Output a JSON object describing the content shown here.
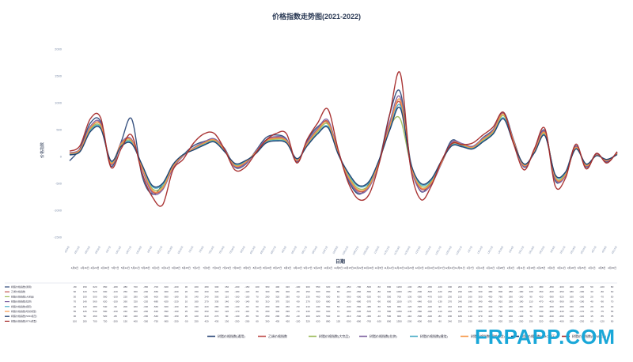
{
  "chart_data": {
    "type": "line",
    "title": "价格指数走势图(2021-2022)",
    "ylabel": "价格指数",
    "xlabel": "日期",
    "ylim": [
      -1500,
      2000
    ],
    "yticks": [
      -1500,
      -1000,
      -500,
      0,
      500,
      1000,
      1500,
      2000
    ],
    "x": [
      "4月9日",
      "4月16日",
      "4月23日",
      "4月30日",
      "5月7日",
      "5月14日",
      "5月21日",
      "5月28日",
      "6月4日",
      "6月11日",
      "6月18日",
      "6月25日",
      "7月2日",
      "7月9日",
      "7月16日",
      "7月23日",
      "7月30日",
      "8月6日",
      "8月13日",
      "8月20日",
      "8月27日",
      "9月3日",
      "9月10日",
      "9月17日",
      "9月24日",
      "10月1日",
      "10月8日",
      "10月15日",
      "10月22日",
      "10月29日",
      "11月5日",
      "11月12日",
      "11月19日",
      "11月26日",
      "12月3日",
      "12月10日",
      "12月17日",
      "12月24日",
      "12月31日",
      "1月7日",
      "1月14日",
      "1月21日",
      "1月28日",
      "2月4日",
      "2月11日",
      "2月18日",
      "2月25日",
      "3月4日",
      "3月11日",
      "3月18日",
      "3月25日",
      "4月1日",
      "4月8日",
      "4月15日"
    ],
    "series": [
      {
        "name": "树脂价格指数(通用)",
        "color": "#2e4a7a",
        "values": [
          -80,
          150,
          620,
          650,
          -180,
          280,
          700,
          -350,
          -700,
          -520,
          -200,
          30,
          200,
          280,
          300,
          150,
          -200,
          -150,
          100,
          350,
          400,
          320,
          -100,
          300,
          550,
          620,
          100,
          -450,
          -700,
          -500,
          -50,
          800,
          1200,
          -100,
          -650,
          -450,
          -100,
          300,
          200,
          150,
          350,
          500,
          820,
          300,
          -200,
          120,
          480,
          -450,
          -300,
          200,
          -200,
          50,
          -100,
          80
        ]
      },
      {
        "name": "乙烯价格指数",
        "color": "#c0504d",
        "values": [
          60,
          120,
          520,
          600,
          -120,
          250,
          300,
          -200,
          -650,
          -600,
          -200,
          20,
          150,
          260,
          320,
          130,
          -180,
          -120,
          80,
          300,
          350,
          300,
          -80,
          250,
          500,
          650,
          80,
          -400,
          -650,
          -550,
          -80,
          600,
          1000,
          -150,
          -600,
          -500,
          -120,
          250,
          230,
          180,
          330,
          480,
          800,
          280,
          -180,
          100,
          450,
          -400,
          -350,
          180,
          -180,
          30,
          -80,
          60
        ]
      },
      {
        "name": "树脂价格指数(大宗品)",
        "color": "#9bbb59",
        "values": [
          50,
          100,
          500,
          560,
          -100,
          220,
          280,
          -180,
          -600,
          -560,
          -180,
          30,
          140,
          240,
          300,
          110,
          -160,
          -100,
          70,
          280,
          320,
          280,
          -60,
          230,
          460,
          600,
          60,
          -360,
          -600,
          -520,
          -60,
          550,
          700,
          -130,
          -550,
          -470,
          -100,
          230,
          210,
          160,
          300,
          450,
          760,
          260,
          -160,
          90,
          420,
          -380,
          -320,
          160,
          -160,
          20,
          -70,
          50
        ]
      },
      {
        "name": "树脂价格指数(拉挤)",
        "color": "#8064a2",
        "values": [
          70,
          140,
          560,
          620,
          -150,
          260,
          320,
          -220,
          -680,
          -620,
          -220,
          10,
          160,
          270,
          330,
          140,
          -190,
          -140,
          90,
          310,
          370,
          310,
          -90,
          270,
          520,
          680,
          90,
          -420,
          -680,
          -570,
          -90,
          650,
          1100,
          -170,
          -640,
          -520,
          -130,
          270,
          240,
          190,
          340,
          490,
          810,
          290,
          -190,
          110,
          470,
          -420,
          -360,
          190,
          -190,
          40,
          -90,
          70
        ]
      },
      {
        "name": "树脂价格指数(缠绕)",
        "color": "#4bacc6",
        "values": [
          40,
          110,
          480,
          540,
          -90,
          200,
          260,
          -160,
          -560,
          -520,
          -160,
          40,
          130,
          220,
          280,
          100,
          -140,
          -90,
          60,
          260,
          300,
          260,
          -50,
          210,
          430,
          560,
          50,
          -330,
          -560,
          -480,
          -50,
          520,
          950,
          -120,
          -520,
          -440,
          -90,
          210,
          190,
          150,
          280,
          430,
          720,
          240,
          -150,
          80,
          400,
          -350,
          -300,
          150,
          -150,
          20,
          -60,
          40
        ]
      },
      {
        "name": "树脂价格指数(喷射成型)",
        "color": "#f79646",
        "values": [
          55,
          125,
          530,
          590,
          -130,
          240,
          300,
          -200,
          -630,
          -590,
          -190,
          25,
          150,
          250,
          310,
          120,
          -170,
          -110,
          75,
          290,
          340,
          290,
          -70,
          240,
          490,
          630,
          70,
          -390,
          -630,
          -540,
          -70,
          580,
          1050,
          -140,
          -580,
          -490,
          -110,
          240,
          220,
          170,
          320,
          470,
          790,
          270,
          -170,
          95,
          440,
          -390,
          -340,
          170,
          -170,
          25,
          -75,
          55
        ]
      },
      {
        "name": "树脂价格指数(SMC模压)",
        "color": "#1f3f6f",
        "values": [
          30,
          90,
          460,
          520,
          -80,
          190,
          240,
          -150,
          -540,
          -500,
          -150,
          35,
          120,
          210,
          270,
          90,
          -130,
          -80,
          50,
          250,
          290,
          250,
          -40,
          200,
          420,
          540,
          40,
          -310,
          -540,
          -460,
          -40,
          500,
          900,
          -110,
          -500,
          -420,
          -80,
          200,
          180,
          140,
          270,
          420,
          700,
          230,
          -140,
          70,
          390,
          -340,
          -290,
          140,
          -140,
          15,
          -55,
          35
        ]
      },
      {
        "name": "树脂价格指数(RTM成型)",
        "color": "#a52a2a",
        "values": [
          100,
          200,
          700,
          720,
          -200,
          150,
          400,
          -300,
          -750,
          -900,
          -250,
          -50,
          250,
          420,
          430,
          130,
          -250,
          -200,
          60,
          300,
          430,
          420,
          -120,
          320,
          620,
          880,
          120,
          -500,
          -800,
          -700,
          -100,
          800,
          1550,
          -200,
          -800,
          -550,
          -80,
          240,
          220,
          250,
          400,
          550,
          820,
          220,
          -250,
          150,
          520,
          -550,
          -400,
          230,
          -230,
          60,
          -120,
          90
        ]
      }
    ],
    "legend_position": "bottom",
    "grid": false
  },
  "watermark": "FRPAPP.COM"
}
